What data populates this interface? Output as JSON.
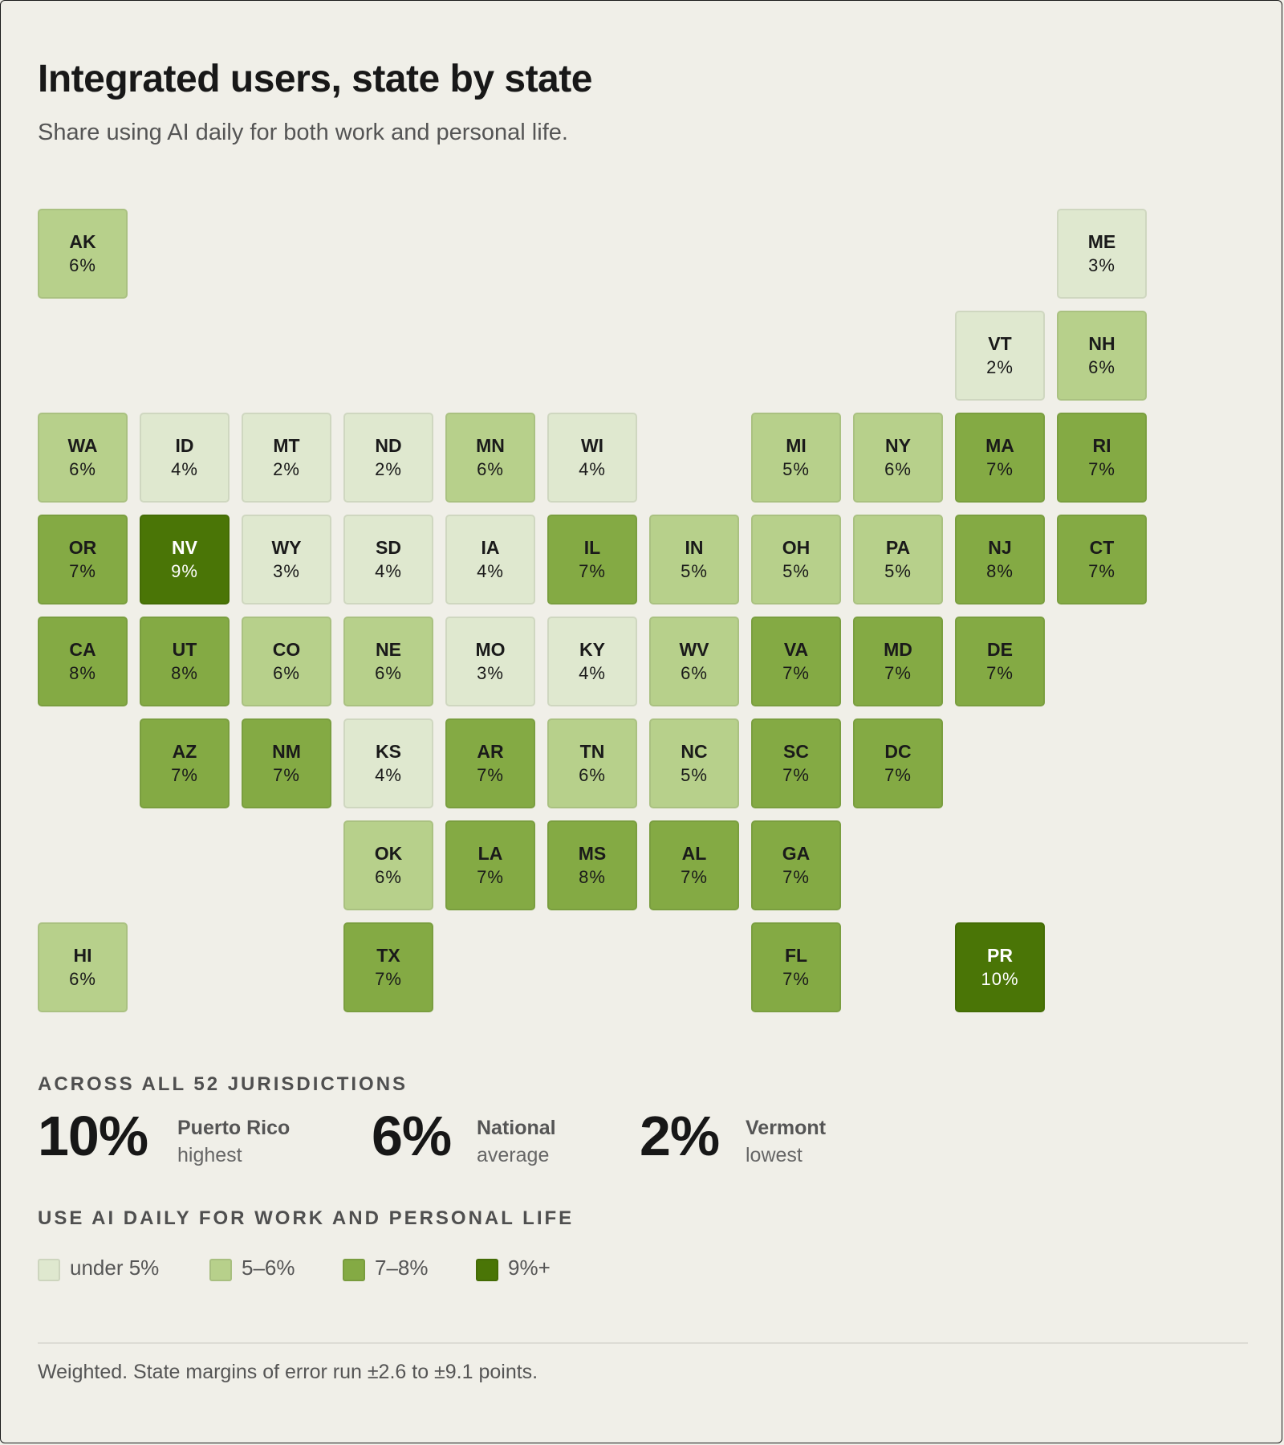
{
  "header": {
    "title": "Integrated users, state by state",
    "subtitle": "Share using AI daily for both work and personal life."
  },
  "chart_data": {
    "type": "heatmap",
    "title": "Integrated users, state by state",
    "subtitle": "Share using AI daily for both work and personal life.",
    "value_unit": "%",
    "layout": "tile grid map, 12 columns x 8 rows",
    "tiles": [
      {
        "abbr": "AK",
        "value": 6,
        "label": "6%",
        "col": 0,
        "row": 0
      },
      {
        "abbr": "ME",
        "value": 3,
        "label": "3%",
        "col": 10,
        "row": 0
      },
      {
        "abbr": "VT",
        "value": 2,
        "label": "2%",
        "col": 9,
        "row": 1
      },
      {
        "abbr": "NH",
        "value": 6,
        "label": "6%",
        "col": 10,
        "row": 1
      },
      {
        "abbr": "WA",
        "value": 6,
        "label": "6%",
        "col": 0,
        "row": 2
      },
      {
        "abbr": "ID",
        "value": 4,
        "label": "4%",
        "col": 1,
        "row": 2
      },
      {
        "abbr": "MT",
        "value": 2,
        "label": "2%",
        "col": 2,
        "row": 2
      },
      {
        "abbr": "ND",
        "value": 2,
        "label": "2%",
        "col": 3,
        "row": 2
      },
      {
        "abbr": "MN",
        "value": 6,
        "label": "6%",
        "col": 4,
        "row": 2
      },
      {
        "abbr": "WI",
        "value": 4,
        "label": "4%",
        "col": 5,
        "row": 2
      },
      {
        "abbr": "MI",
        "value": 5,
        "label": "5%",
        "col": 7,
        "row": 2
      },
      {
        "abbr": "NY",
        "value": 6,
        "label": "6%",
        "col": 8,
        "row": 2
      },
      {
        "abbr": "MA",
        "value": 7,
        "label": "7%",
        "col": 9,
        "row": 2
      },
      {
        "abbr": "RI",
        "value": 7,
        "label": "7%",
        "col": 10,
        "row": 2
      },
      {
        "abbr": "OR",
        "value": 7,
        "label": "7%",
        "col": 0,
        "row": 3
      },
      {
        "abbr": "NV",
        "value": 9,
        "label": "9%",
        "col": 1,
        "row": 3
      },
      {
        "abbr": "WY",
        "value": 3,
        "label": "3%",
        "col": 2,
        "row": 3
      },
      {
        "abbr": "SD",
        "value": 4,
        "label": "4%",
        "col": 3,
        "row": 3
      },
      {
        "abbr": "IA",
        "value": 4,
        "label": "4%",
        "col": 4,
        "row": 3
      },
      {
        "abbr": "IL",
        "value": 7,
        "label": "7%",
        "col": 5,
        "row": 3
      },
      {
        "abbr": "IN",
        "value": 5,
        "label": "5%",
        "col": 6,
        "row": 3
      },
      {
        "abbr": "OH",
        "value": 5,
        "label": "5%",
        "col": 7,
        "row": 3
      },
      {
        "abbr": "PA",
        "value": 5,
        "label": "5%",
        "col": 8,
        "row": 3
      },
      {
        "abbr": "NJ",
        "value": 8,
        "label": "8%",
        "col": 9,
        "row": 3
      },
      {
        "abbr": "CT",
        "value": 7,
        "label": "7%",
        "col": 10,
        "row": 3
      },
      {
        "abbr": "CA",
        "value": 8,
        "label": "8%",
        "col": 0,
        "row": 4
      },
      {
        "abbr": "UT",
        "value": 8,
        "label": "8%",
        "col": 1,
        "row": 4
      },
      {
        "abbr": "CO",
        "value": 6,
        "label": "6%",
        "col": 2,
        "row": 4
      },
      {
        "abbr": "NE",
        "value": 6,
        "label": "6%",
        "col": 3,
        "row": 4
      },
      {
        "abbr": "MO",
        "value": 3,
        "label": "3%",
        "col": 4,
        "row": 4
      },
      {
        "abbr": "KY",
        "value": 4,
        "label": "4%",
        "col": 5,
        "row": 4
      },
      {
        "abbr": "WV",
        "value": 6,
        "label": "6%",
        "col": 6,
        "row": 4
      },
      {
        "abbr": "VA",
        "value": 7,
        "label": "7%",
        "col": 7,
        "row": 4
      },
      {
        "abbr": "MD",
        "value": 7,
        "label": "7%",
        "col": 8,
        "row": 4
      },
      {
        "abbr": "DE",
        "value": 7,
        "label": "7%",
        "col": 9,
        "row": 4
      },
      {
        "abbr": "AZ",
        "value": 7,
        "label": "7%",
        "col": 1,
        "row": 5
      },
      {
        "abbr": "NM",
        "value": 7,
        "label": "7%",
        "col": 2,
        "row": 5
      },
      {
        "abbr": "KS",
        "value": 4,
        "label": "4%",
        "col": 3,
        "row": 5
      },
      {
        "abbr": "AR",
        "value": 7,
        "label": "7%",
        "col": 4,
        "row": 5
      },
      {
        "abbr": "TN",
        "value": 6,
        "label": "6%",
        "col": 5,
        "row": 5
      },
      {
        "abbr": "NC",
        "value": 5,
        "label": "5%",
        "col": 6,
        "row": 5
      },
      {
        "abbr": "SC",
        "value": 7,
        "label": "7%",
        "col": 7,
        "row": 5
      },
      {
        "abbr": "DC",
        "value": 7,
        "label": "7%",
        "col": 8,
        "row": 5
      },
      {
        "abbr": "OK",
        "value": 6,
        "label": "6%",
        "col": 3,
        "row": 6
      },
      {
        "abbr": "LA",
        "value": 7,
        "label": "7%",
        "col": 4,
        "row": 6
      },
      {
        "abbr": "MS",
        "value": 8,
        "label": "8%",
        "col": 5,
        "row": 6
      },
      {
        "abbr": "AL",
        "value": 7,
        "label": "7%",
        "col": 6,
        "row": 6
      },
      {
        "abbr": "GA",
        "value": 7,
        "label": "7%",
        "col": 7,
        "row": 6
      },
      {
        "abbr": "HI",
        "value": 6,
        "label": "6%",
        "col": 0,
        "row": 7
      },
      {
        "abbr": "TX",
        "value": 7,
        "label": "7%",
        "col": 3,
        "row": 7
      },
      {
        "abbr": "FL",
        "value": 7,
        "label": "7%",
        "col": 7,
        "row": 7
      },
      {
        "abbr": "PR",
        "value": 10,
        "label": "10%",
        "col": 9,
        "row": 7
      }
    ],
    "scale": [
      {
        "label": "under 5%",
        "min": null,
        "max": 4,
        "color": "#dfe8cf",
        "text": "#1a1a1a"
      },
      {
        "label": "5–6%",
        "min": 5,
        "max": 6,
        "color": "#b7d08b",
        "text": "#1a1a1a"
      },
      {
        "label": "7–8%",
        "min": 7,
        "max": 8,
        "color": "#84aa44",
        "text": "#1a1a1a"
      },
      {
        "label": "9%+",
        "min": 9,
        "max": null,
        "color": "#4a7506",
        "text": "#ffffff"
      }
    ]
  },
  "summary": {
    "label": "ACROSS ALL 52 JURISDICTIONS",
    "stats": [
      {
        "value": "10%",
        "line1": "Puerto Rico",
        "line2": "highest"
      },
      {
        "value": "6%",
        "line1": "National",
        "line2": "average"
      },
      {
        "value": "2%",
        "line1": "Vermont",
        "line2": "lowest"
      }
    ]
  },
  "legend": {
    "label": "USE AI DAILY FOR WORK AND PERSONAL LIFE"
  },
  "footnote": "Weighted. State margins of error run ±2.6 to ±9.1 points."
}
